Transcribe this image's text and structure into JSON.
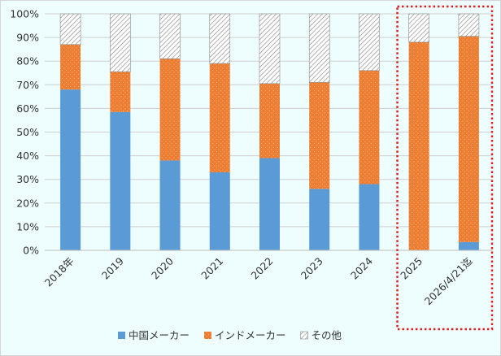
{
  "chart_data": {
    "type": "bar",
    "stacked": true,
    "percent_stacked": true,
    "title": "",
    "xlabel": "",
    "ylabel": "",
    "ylim": [
      0,
      100
    ],
    "y_tick_labels": [
      "0%",
      "10%",
      "20%",
      "30%",
      "40%",
      "50%",
      "60%",
      "70%",
      "80%",
      "90%",
      "100%"
    ],
    "grid": true,
    "legend_position": "bottom",
    "categories": [
      "2018年",
      "2019",
      "2020",
      "2021",
      "2022",
      "2023",
      "2024",
      "2025",
      "2026/4/21迄"
    ],
    "series": [
      {
        "name": "中国メーカー",
        "color": "#5b9bd5",
        "pattern": "solid",
        "values": [
          68,
          58.5,
          38,
          33,
          39,
          26,
          28,
          0,
          3.5
        ]
      },
      {
        "name": "インドメーカー",
        "color": "#ed7d31",
        "pattern": "dotted",
        "values": [
          19,
          17,
          43,
          46,
          31.5,
          45,
          48,
          88,
          87
        ]
      },
      {
        "name": "その他",
        "color": "#a5a5a5",
        "pattern": "hatched",
        "values": [
          13,
          24.5,
          19,
          21,
          29.5,
          29,
          24,
          12,
          9.5
        ]
      }
    ],
    "highlight": {
      "categories": [
        "2025",
        "2026/4/21迄"
      ],
      "style": "dotted red box",
      "color": "#e02020"
    }
  }
}
